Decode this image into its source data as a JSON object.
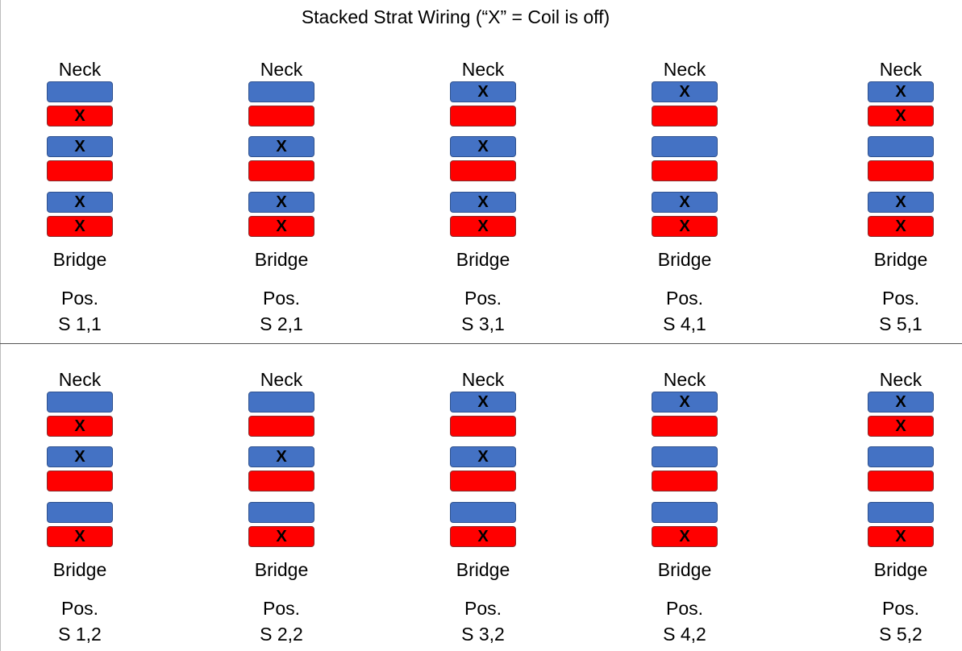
{
  "title": "Stacked Strat Wiring (“X” = Coil is off)",
  "colors": {
    "neck_coil": "#4472c4",
    "bridge_coil": "#ff0000",
    "divider": "#555555"
  },
  "coil_off_mark": "X",
  "rows": [
    {
      "diagrams": [
        {
          "top_label": "Neck",
          "bottom_label": "Bridge",
          "pos_label": "Pos.",
          "position": "S 1,1",
          "pickups": [
            {
              "coils": [
                {
                  "color": "blue",
                  "off": false
                },
                {
                  "color": "red",
                  "off": true
                }
              ]
            },
            {
              "coils": [
                {
                  "color": "blue",
                  "off": true
                },
                {
                  "color": "red",
                  "off": false
                }
              ]
            },
            {
              "coils": [
                {
                  "color": "blue",
                  "off": true
                },
                {
                  "color": "red",
                  "off": true
                }
              ]
            }
          ]
        },
        {
          "top_label": "Neck",
          "bottom_label": "Bridge",
          "pos_label": "Pos.",
          "position": "S 2,1",
          "pickups": [
            {
              "coils": [
                {
                  "color": "blue",
                  "off": false
                },
                {
                  "color": "red",
                  "off": false
                }
              ]
            },
            {
              "coils": [
                {
                  "color": "blue",
                  "off": true
                },
                {
                  "color": "red",
                  "off": false
                }
              ]
            },
            {
              "coils": [
                {
                  "color": "blue",
                  "off": true
                },
                {
                  "color": "red",
                  "off": true
                }
              ]
            }
          ]
        },
        {
          "top_label": "Neck",
          "bottom_label": "Bridge",
          "pos_label": "Pos.",
          "position": "S 3,1",
          "pickups": [
            {
              "coils": [
                {
                  "color": "blue",
                  "off": true
                },
                {
                  "color": "red",
                  "off": false
                }
              ]
            },
            {
              "coils": [
                {
                  "color": "blue",
                  "off": true
                },
                {
                  "color": "red",
                  "off": false
                }
              ]
            },
            {
              "coils": [
                {
                  "color": "blue",
                  "off": true
                },
                {
                  "color": "red",
                  "off": true
                }
              ]
            }
          ]
        },
        {
          "top_label": "Neck",
          "bottom_label": "Bridge",
          "pos_label": "Pos.",
          "position": "S 4,1",
          "pickups": [
            {
              "coils": [
                {
                  "color": "blue",
                  "off": true
                },
                {
                  "color": "red",
                  "off": false
                }
              ]
            },
            {
              "coils": [
                {
                  "color": "blue",
                  "off": false
                },
                {
                  "color": "red",
                  "off": false
                }
              ]
            },
            {
              "coils": [
                {
                  "color": "blue",
                  "off": true
                },
                {
                  "color": "red",
                  "off": true
                }
              ]
            }
          ]
        },
        {
          "top_label": "Neck",
          "bottom_label": "Bridge",
          "pos_label": "Pos.",
          "position": "S 5,1",
          "pickups": [
            {
              "coils": [
                {
                  "color": "blue",
                  "off": true
                },
                {
                  "color": "red",
                  "off": true
                }
              ]
            },
            {
              "coils": [
                {
                  "color": "blue",
                  "off": false
                },
                {
                  "color": "red",
                  "off": false
                }
              ]
            },
            {
              "coils": [
                {
                  "color": "blue",
                  "off": true
                },
                {
                  "color": "red",
                  "off": true
                }
              ]
            }
          ]
        }
      ]
    },
    {
      "diagrams": [
        {
          "top_label": "Neck",
          "bottom_label": "Bridge",
          "pos_label": "Pos.",
          "position": "S 1,2",
          "pickups": [
            {
              "coils": [
                {
                  "color": "blue",
                  "off": false
                },
                {
                  "color": "red",
                  "off": true
                }
              ]
            },
            {
              "coils": [
                {
                  "color": "blue",
                  "off": true
                },
                {
                  "color": "red",
                  "off": false
                }
              ]
            },
            {
              "coils": [
                {
                  "color": "blue",
                  "off": false
                },
                {
                  "color": "red",
                  "off": true
                }
              ]
            }
          ]
        },
        {
          "top_label": "Neck",
          "bottom_label": "Bridge",
          "pos_label": "Pos.",
          "position": "S 2,2",
          "pickups": [
            {
              "coils": [
                {
                  "color": "blue",
                  "off": false
                },
                {
                  "color": "red",
                  "off": false
                }
              ]
            },
            {
              "coils": [
                {
                  "color": "blue",
                  "off": true
                },
                {
                  "color": "red",
                  "off": false
                }
              ]
            },
            {
              "coils": [
                {
                  "color": "blue",
                  "off": false
                },
                {
                  "color": "red",
                  "off": true
                }
              ]
            }
          ]
        },
        {
          "top_label": "Neck",
          "bottom_label": "Bridge",
          "pos_label": "Pos.",
          "position": "S 3,2",
          "pickups": [
            {
              "coils": [
                {
                  "color": "blue",
                  "off": true
                },
                {
                  "color": "red",
                  "off": false
                }
              ]
            },
            {
              "coils": [
                {
                  "color": "blue",
                  "off": true
                },
                {
                  "color": "red",
                  "off": false
                }
              ]
            },
            {
              "coils": [
                {
                  "color": "blue",
                  "off": false
                },
                {
                  "color": "red",
                  "off": true
                }
              ]
            }
          ]
        },
        {
          "top_label": "Neck",
          "bottom_label": "Bridge",
          "pos_label": "Pos.",
          "position": "S 4,2",
          "pickups": [
            {
              "coils": [
                {
                  "color": "blue",
                  "off": true
                },
                {
                  "color": "red",
                  "off": false
                }
              ]
            },
            {
              "coils": [
                {
                  "color": "blue",
                  "off": false
                },
                {
                  "color": "red",
                  "off": false
                }
              ]
            },
            {
              "coils": [
                {
                  "color": "blue",
                  "off": false
                },
                {
                  "color": "red",
                  "off": true
                }
              ]
            }
          ]
        },
        {
          "top_label": "Neck",
          "bottom_label": "Bridge",
          "pos_label": "Pos.",
          "position": "S 5,2",
          "pickups": [
            {
              "coils": [
                {
                  "color": "blue",
                  "off": true
                },
                {
                  "color": "red",
                  "off": true
                }
              ]
            },
            {
              "coils": [
                {
                  "color": "blue",
                  "off": false
                },
                {
                  "color": "red",
                  "off": false
                }
              ]
            },
            {
              "coils": [
                {
                  "color": "blue",
                  "off": false
                },
                {
                  "color": "red",
                  "off": true
                }
              ]
            }
          ]
        }
      ]
    }
  ]
}
